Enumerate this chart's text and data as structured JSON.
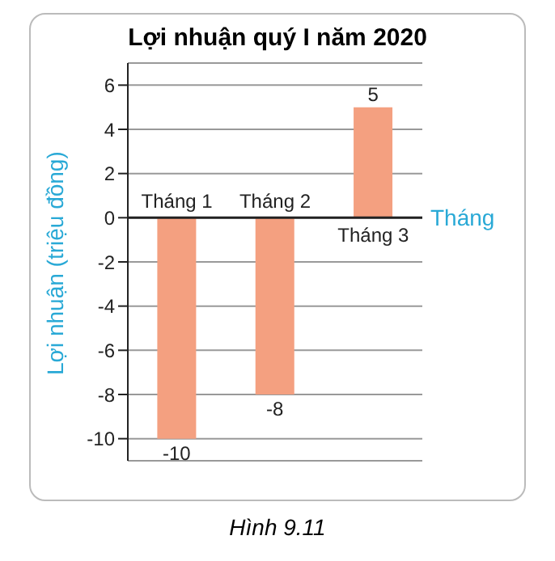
{
  "chart_data": {
    "type": "bar",
    "title": "Lợi nhuận quý I năm 2020",
    "xlabel": "Tháng",
    "ylabel": "Lợi nhuận (triệu đồng)",
    "categories": [
      "Tháng 1",
      "Tháng 2",
      "Tháng 3"
    ],
    "values": [
      -10,
      -8,
      5
    ],
    "color": "#f4a080",
    "ylim": [
      -11,
      7
    ],
    "yticks": [
      -10,
      -8,
      -6,
      -4,
      -2,
      0,
      2,
      4,
      6
    ],
    "grid": "y",
    "data_labels": true,
    "annotations": [
      "Hình 9.11"
    ]
  }
}
